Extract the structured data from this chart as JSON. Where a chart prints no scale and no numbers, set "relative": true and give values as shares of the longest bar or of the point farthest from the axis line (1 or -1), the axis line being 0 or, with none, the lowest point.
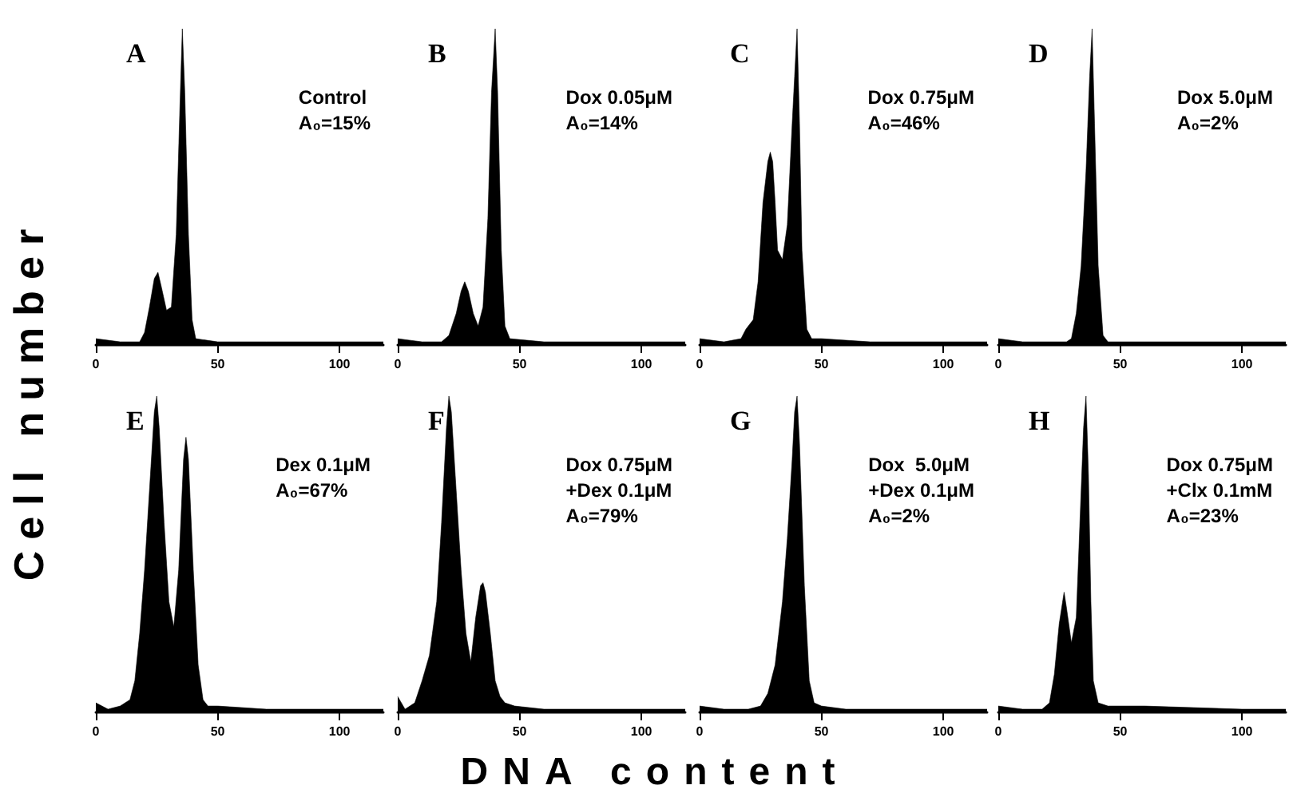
{
  "chart_data": [
    {
      "type": "area",
      "title": "A",
      "ylabel": "Cell number",
      "xlabel": "DNA content",
      "annotations": [
        "Control",
        "A₀=15%"
      ],
      "relative": true,
      "xlim": [
        0,
        118
      ],
      "xticks": [
        0,
        50,
        100
      ],
      "x": [
        0,
        10,
        18,
        20,
        22,
        24,
        25.5,
        27,
        29,
        31,
        33,
        34.5,
        35.5,
        36.5,
        38,
        39.5,
        41,
        50,
        70,
        100,
        118
      ],
      "series": [
        {
          "color": "#000000",
          "values": [
            0.02,
            0.01,
            0.01,
            0.04,
            0.12,
            0.21,
            0.23,
            0.18,
            0.11,
            0.12,
            0.35,
            0.75,
            1,
            0.8,
            0.35,
            0.08,
            0.02,
            0.01,
            0.01,
            0.01,
            0.01
          ]
        }
      ]
    },
    {
      "type": "area",
      "title": "B",
      "annotations": [
        "Dox 0.05μM",
        "A₀=14%"
      ],
      "relative": true,
      "xlim": [
        0,
        118
      ],
      "xticks": [
        0,
        50,
        100
      ],
      "x": [
        0,
        10,
        18,
        21,
        24,
        26,
        27.5,
        29,
        31,
        33,
        35,
        37,
        38.5,
        40,
        41,
        42.5,
        44,
        46,
        60,
        100,
        118
      ],
      "series": [
        {
          "color": "#000000",
          "values": [
            0.02,
            0.01,
            0.01,
            0.03,
            0.1,
            0.17,
            0.2,
            0.17,
            0.1,
            0.06,
            0.12,
            0.4,
            0.8,
            1,
            0.8,
            0.3,
            0.06,
            0.02,
            0.01,
            0.01,
            0.01
          ]
        }
      ]
    },
    {
      "type": "area",
      "title": "C",
      "annotations": [
        "Dox 0.75μM",
        "A₀=46%"
      ],
      "relative": true,
      "xlim": [
        0,
        118
      ],
      "xticks": [
        0,
        50,
        100
      ],
      "x": [
        0,
        10,
        17,
        19,
        22,
        24,
        26,
        28,
        29,
        30,
        31,
        32,
        34,
        36,
        38,
        39,
        40,
        41,
        42,
        44,
        46,
        50,
        70,
        100,
        118
      ],
      "series": [
        {
          "color": "#000000",
          "values": [
            0.02,
            0.01,
            0.02,
            0.05,
            0.08,
            0.2,
            0.45,
            0.58,
            0.61,
            0.58,
            0.45,
            0.3,
            0.27,
            0.38,
            0.7,
            0.85,
            1,
            0.7,
            0.3,
            0.05,
            0.02,
            0.02,
            0.01,
            0.01,
            0.01
          ]
        }
      ]
    },
    {
      "type": "area",
      "title": "D",
      "annotations": [
        "Dox 5.0μM",
        "A₀=2%"
      ],
      "relative": true,
      "xlim": [
        0,
        118
      ],
      "xticks": [
        0,
        50,
        100
      ],
      "x": [
        0,
        10,
        20,
        28,
        30,
        32,
        34,
        36,
        37.5,
        38.5,
        39.5,
        41,
        43,
        45,
        60,
        100,
        118
      ],
      "series": [
        {
          "color": "#000000",
          "values": [
            0.02,
            0.01,
            0.01,
            0.01,
            0.02,
            0.1,
            0.25,
            0.55,
            0.85,
            1,
            0.7,
            0.25,
            0.03,
            0.01,
            0.01,
            0.01,
            0.01
          ]
        }
      ]
    },
    {
      "type": "area",
      "title": "E",
      "annotations": [
        "Dex 0.1μM",
        "A₀=67%"
      ],
      "relative": true,
      "xlim": [
        0,
        118
      ],
      "xticks": [
        0,
        50,
        100
      ],
      "x": [
        0,
        5,
        10,
        14,
        16,
        18,
        20,
        22,
        24,
        25,
        26,
        28,
        30,
        32,
        34,
        36,
        37,
        38,
        40,
        42,
        44,
        46,
        50,
        70,
        100,
        118
      ],
      "series": [
        {
          "color": "#000000",
          "values": [
            0.03,
            0.01,
            0.02,
            0.04,
            0.1,
            0.25,
            0.45,
            0.7,
            0.95,
            1,
            0.9,
            0.6,
            0.35,
            0.27,
            0.45,
            0.8,
            0.87,
            0.8,
            0.45,
            0.15,
            0.04,
            0.02,
            0.02,
            0.01,
            0.01,
            0.01
          ]
        }
      ]
    },
    {
      "type": "area",
      "title": "F",
      "annotations": [
        "Dox 0.75μM",
        "+Dex 0.1μM",
        "A₀=79%"
      ],
      "relative": true,
      "xlim": [
        0,
        118
      ],
      "xticks": [
        0,
        50,
        100
      ],
      "x": [
        0,
        3,
        7,
        10,
        13,
        16,
        18,
        20,
        21,
        22,
        24,
        26,
        28,
        30,
        32,
        34,
        35,
        36,
        38,
        40,
        42,
        44,
        48,
        60,
        100,
        118
      ],
      "series": [
        {
          "color": "#000000",
          "values": [
            0.05,
            0.01,
            0.03,
            0.1,
            0.18,
            0.35,
            0.6,
            0.9,
            1,
            0.95,
            0.7,
            0.45,
            0.25,
            0.16,
            0.3,
            0.4,
            0.41,
            0.38,
            0.25,
            0.1,
            0.05,
            0.03,
            0.02,
            0.01,
            0.01,
            0.01
          ]
        }
      ]
    },
    {
      "type": "area",
      "title": "G",
      "annotations": [
        "Dox  5.0μM",
        "+Dex 0.1μM",
        "A₀=2%"
      ],
      "relative": true,
      "xlim": [
        0,
        118
      ],
      "xticks": [
        0,
        50,
        100
      ],
      "x": [
        0,
        10,
        20,
        25,
        28,
        31,
        34,
        36,
        38,
        39,
        40,
        41,
        43,
        45,
        47,
        50,
        60,
        100,
        118
      ],
      "series": [
        {
          "color": "#000000",
          "values": [
            0.02,
            0.01,
            0.01,
            0.02,
            0.06,
            0.15,
            0.35,
            0.55,
            0.8,
            0.95,
            1,
            0.85,
            0.4,
            0.1,
            0.03,
            0.02,
            0.01,
            0.01,
            0.01
          ]
        }
      ]
    },
    {
      "type": "area",
      "title": "H",
      "annotations": [
        "Dox 0.75μM",
        "+Clx 0.1mM",
        "A₀=23%"
      ],
      "relative": true,
      "xlim": [
        0,
        118
      ],
      "xticks": [
        0,
        50,
        100
      ],
      "x": [
        0,
        10,
        18,
        21,
        23,
        25,
        27,
        28,
        30,
        32,
        34,
        35,
        36,
        37,
        38,
        39,
        41,
        45,
        60,
        100,
        118
      ],
      "series": [
        {
          "color": "#000000",
          "values": [
            0.02,
            0.01,
            0.01,
            0.03,
            0.12,
            0.28,
            0.38,
            0.33,
            0.22,
            0.3,
            0.7,
            0.9,
            1,
            0.75,
            0.35,
            0.1,
            0.03,
            0.02,
            0.02,
            0.01,
            0.01
          ]
        }
      ]
    }
  ]
}
